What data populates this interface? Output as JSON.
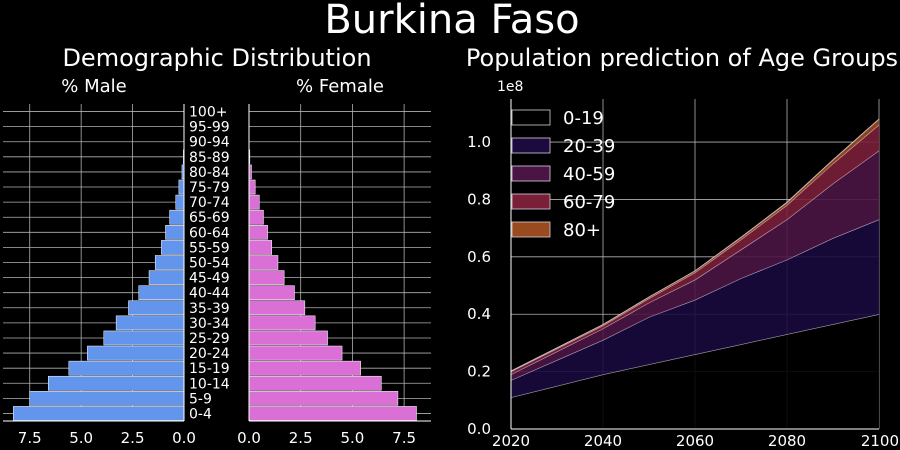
{
  "title": "Burkina Faso",
  "colors": {
    "background": "#000000",
    "male_bar": "#6495ED",
    "female_bar": "#DA70D6",
    "grid": "#b0b0b0",
    "area_0_19": "#000000",
    "area_20_39": "#1a0a3d",
    "area_40_59": "#4a1545",
    "area_60_79": "#7a1f38",
    "area_80_plus": "#9a4a1f"
  },
  "chart_data": [
    {
      "type": "bar",
      "orientation": "horizontal",
      "title": "Demographic Distribution",
      "subtitle_left": "% Male",
      "subtitle_right": "% Female",
      "categories": [
        "0-4",
        "5-9",
        "10-14",
        "15-19",
        "20-24",
        "25-29",
        "30-34",
        "35-39",
        "40-44",
        "45-49",
        "50-54",
        "55-59",
        "60-64",
        "65-69",
        "70-74",
        "75-79",
        "80-84",
        "85-89",
        "90-94",
        "95-99",
        "100+"
      ],
      "series": [
        {
          "name": "% Male",
          "values": [
            8.3,
            7.5,
            6.6,
            5.6,
            4.7,
            3.9,
            3.3,
            2.7,
            2.2,
            1.7,
            1.4,
            1.1,
            0.9,
            0.7,
            0.4,
            0.25,
            0.1,
            0.03,
            0.01,
            0,
            0
          ]
        },
        {
          "name": "% Female",
          "values": [
            8.1,
            7.2,
            6.4,
            5.4,
            4.5,
            3.8,
            3.2,
            2.7,
            2.2,
            1.7,
            1.4,
            1.1,
            0.9,
            0.7,
            0.5,
            0.3,
            0.12,
            0.04,
            0.01,
            0,
            0
          ]
        }
      ],
      "male_xticks": [
        "7.5",
        "5.0",
        "2.5",
        "0.0"
      ],
      "female_xticks": [
        "0.0",
        "2.5",
        "5.0",
        "7.5"
      ],
      "xlim": [
        0,
        8.8
      ]
    },
    {
      "type": "area",
      "stacked": true,
      "title": "Population prediction of Age Groups",
      "y_scale_label": "1e8",
      "x": [
        2020,
        2030,
        2040,
        2050,
        2060,
        2070,
        2080,
        2090,
        2100
      ],
      "series": [
        {
          "name": "0-19",
          "values": [
            0.11,
            0.15,
            0.19,
            0.225,
            0.26,
            0.295,
            0.33,
            0.365,
            0.4
          ]
        },
        {
          "name": "20-39",
          "values": [
            0.06,
            0.09,
            0.12,
            0.165,
            0.19,
            0.23,
            0.26,
            0.3,
            0.33
          ]
        },
        {
          "name": "40-59",
          "values": [
            0.02,
            0.03,
            0.04,
            0.05,
            0.07,
            0.1,
            0.14,
            0.19,
            0.24
          ]
        },
        {
          "name": "60-79",
          "values": [
            0.01,
            0.01,
            0.01,
            0.015,
            0.025,
            0.035,
            0.05,
            0.07,
            0.09
          ]
        },
        {
          "name": "80+",
          "values": [
            0.002,
            0.003,
            0.004,
            0.005,
            0.006,
            0.008,
            0.01,
            0.013,
            0.02
          ]
        }
      ],
      "xticks": [
        "2020",
        "2040",
        "2060",
        "2080",
        "2100"
      ],
      "yticks": [
        "0.0",
        "0.2",
        "0.4",
        "0.6",
        "0.8",
        "1.0"
      ],
      "xlim": [
        2020,
        2100
      ],
      "ylim": [
        0,
        1.15
      ],
      "legend": "top-left",
      "grid": true
    }
  ]
}
